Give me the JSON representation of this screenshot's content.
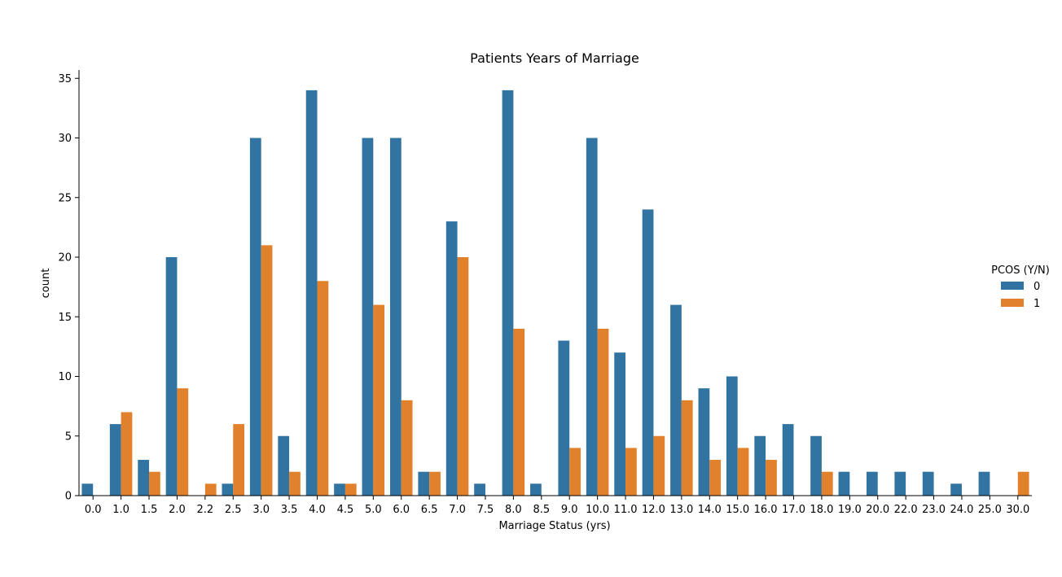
{
  "chart_data": {
    "type": "bar",
    "title": "Patients Years of Marriage",
    "xlabel": "Marriage Status (yrs)",
    "ylabel": "count",
    "ylim": [
      0,
      35.7
    ],
    "yticks": [
      "0",
      "5",
      "10",
      "15",
      "20",
      "25",
      "30",
      "35"
    ],
    "grid": false,
    "legend": {
      "title": "PCOS (Y/N)",
      "position": "right"
    },
    "categories": [
      "0.0",
      "1.0",
      "1.5",
      "2.0",
      "2.2",
      "2.5",
      "3.0",
      "3.5",
      "4.0",
      "4.5",
      "5.0",
      "6.0",
      "6.5",
      "7.0",
      "7.5",
      "8.0",
      "8.5",
      "9.0",
      "10.0",
      "11.0",
      "12.0",
      "13.0",
      "14.0",
      "15.0",
      "16.0",
      "17.0",
      "18.0",
      "19.0",
      "20.0",
      "22.0",
      "23.0",
      "24.0",
      "25.0",
      "30.0"
    ],
    "series": [
      {
        "name": "0",
        "color": "#3274a1",
        "values": [
          1,
          6,
          3,
          20,
          0,
          1,
          30,
          5,
          34,
          1,
          30,
          30,
          2,
          23,
          1,
          34,
          1,
          13,
          30,
          12,
          24,
          16,
          9,
          10,
          5,
          6,
          5,
          2,
          2,
          2,
          2,
          1,
          2,
          0
        ]
      },
      {
        "name": "1",
        "color": "#e1812c",
        "values": [
          0,
          7,
          2,
          9,
          1,
          6,
          21,
          2,
          18,
          1,
          16,
          8,
          2,
          20,
          0,
          14,
          0,
          4,
          14,
          4,
          5,
          8,
          3,
          4,
          3,
          0,
          2,
          0,
          0,
          0,
          0,
          0,
          0,
          2
        ]
      }
    ]
  }
}
